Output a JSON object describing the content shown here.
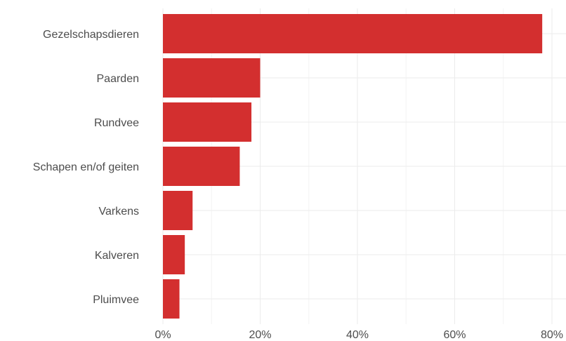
{
  "chart_data": {
    "type": "bar",
    "orientation": "horizontal",
    "categories": [
      "Gezelschapsdieren",
      "Paarden",
      "Rundvee",
      "Schapen en/of geiten",
      "Varkens",
      "Kalveren",
      "Pluimvee"
    ],
    "values": [
      78,
      20,
      18.2,
      15.8,
      6.1,
      4.5,
      3.4
    ],
    "x_ticks": [
      "0%",
      "20%",
      "40%",
      "60%",
      "80%"
    ],
    "xlim": [
      0,
      80
    ],
    "grid": true,
    "bar_color": "#d32f2f"
  }
}
